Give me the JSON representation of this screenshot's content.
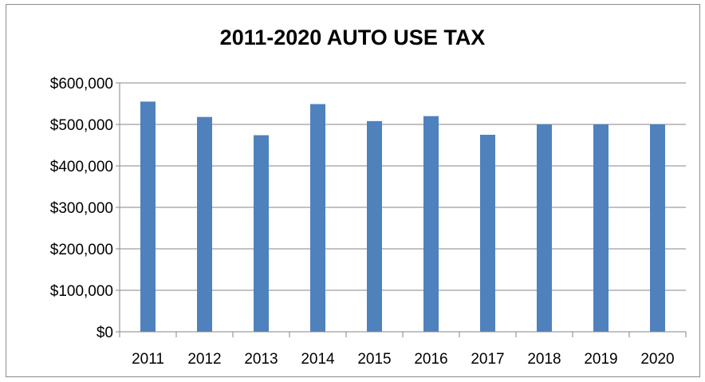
{
  "chart_data": {
    "type": "bar",
    "title": "2011-2020 AUTO USE TAX",
    "xlabel": "",
    "ylabel": "",
    "categories": [
      "2011",
      "2012",
      "2013",
      "2014",
      "2015",
      "2016",
      "2017",
      "2018",
      "2019",
      "2020"
    ],
    "values": [
      555000,
      518000,
      474000,
      549000,
      508000,
      520000,
      475000,
      500000,
      500000,
      500000
    ],
    "ylim": [
      0,
      600000
    ],
    "yticks": [
      0,
      100000,
      200000,
      300000,
      400000,
      500000,
      600000
    ],
    "ytick_labels": [
      "$0",
      "$100,000",
      "$200,000",
      "$300,000",
      "$400,000",
      "$500,000",
      "$600,000"
    ],
    "grid": true,
    "legend": "none",
    "bar_color": "#4f81bd",
    "grid_color": "#868686"
  }
}
